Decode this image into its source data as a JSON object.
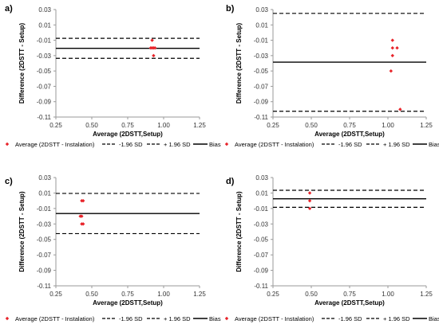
{
  "chart_data": [
    {
      "type": "scatter",
      "panel_label": "a)",
      "xlabel": "Average (2DSTT,Setup)",
      "ylabel": "Difference (2DSTT - Setup)",
      "xlim": [
        0.25,
        1.25
      ],
      "ylim": [
        -0.11,
        0.03
      ],
      "x_ticks": [
        "0.25",
        "0.50",
        "0.75",
        "1.00",
        "1.25"
      ],
      "y_ticks": [
        "0.03",
        "0.01",
        "-0.01",
        "-0.03",
        "-0.05",
        "-0.07",
        "-0.09",
        "-0.11"
      ],
      "grid": false,
      "points": [
        {
          "x": 0.92,
          "y": -0.01
        },
        {
          "x": 0.91,
          "y": -0.02
        },
        {
          "x": 0.92,
          "y": -0.02
        },
        {
          "x": 0.93,
          "y": -0.02
        },
        {
          "x": 0.94,
          "y": -0.02
        },
        {
          "x": 0.93,
          "y": -0.03
        }
      ],
      "bias": -0.0205,
      "lower_sd": -0.0335,
      "upper_sd": -0.0075,
      "legend": {
        "position": "bottom",
        "items": [
          "Average (2DSTT - Instalation)",
          "-1.96 SD",
          "+ 1.96 SD",
          "Bias"
        ]
      }
    },
    {
      "type": "scatter",
      "panel_label": "b)",
      "xlabel": "Average (2DSTT,Setup)",
      "ylabel": "Difference (2DSTT - Setup)",
      "xlim": [
        0.25,
        1.25
      ],
      "ylim": [
        -0.11,
        0.03
      ],
      "x_ticks": [
        "0.25",
        "0.50",
        "0.75",
        "1.00",
        "1.25"
      ],
      "y_ticks": [
        "0.03",
        "0.01",
        "-0.01",
        "-0.03",
        "-0.05",
        "-0.07",
        "-0.09",
        "-0.11"
      ],
      "grid": false,
      "points": [
        {
          "x": 1.03,
          "y": -0.01
        },
        {
          "x": 1.03,
          "y": -0.02
        },
        {
          "x": 1.06,
          "y": -0.02
        },
        {
          "x": 1.03,
          "y": -0.03
        },
        {
          "x": 1.02,
          "y": -0.05
        },
        {
          "x": 1.08,
          "y": -0.1
        }
      ],
      "bias": -0.0385,
      "lower_sd": -0.1025,
      "upper_sd": 0.025,
      "legend": {
        "position": "bottom",
        "items": [
          "Average (2DSTT - Instalation)",
          "-1.96 SD",
          "+ 1.96 SD",
          "Bias"
        ]
      }
    },
    {
      "type": "scatter",
      "panel_label": "c)",
      "xlabel": "Average (2DSTT,Setup)",
      "ylabel": "Difference (2DSTT - Setup)",
      "xlim": [
        0.25,
        1.25
      ],
      "ylim": [
        -0.11,
        0.03
      ],
      "x_ticks": [
        "0.25",
        "0.50",
        "0.75",
        "1.00",
        "1.25"
      ],
      "y_ticks": [
        "0.03",
        "0.01",
        "-0.01",
        "-0.03",
        "-0.05",
        "-0.07",
        "-0.09",
        "-0.11"
      ],
      "grid": false,
      "points": [
        {
          "x": 0.43,
          "y": 0.0
        },
        {
          "x": 0.44,
          "y": 0.0
        },
        {
          "x": 0.42,
          "y": -0.02
        },
        {
          "x": 0.43,
          "y": -0.02
        },
        {
          "x": 0.43,
          "y": -0.03
        },
        {
          "x": 0.44,
          "y": -0.03
        }
      ],
      "bias": -0.0165,
      "lower_sd": -0.0425,
      "upper_sd": 0.0095,
      "legend": {
        "position": "bottom",
        "items": [
          "Average (2DSTT - Instalation)",
          "-1.96 SD",
          "+ 1.96 SD",
          "Bias"
        ]
      }
    },
    {
      "type": "scatter",
      "panel_label": "d)",
      "xlabel": "Average (2DSTT,Setup)",
      "ylabel": "Difference (2DSTT - Setup)",
      "xlim": [
        0.25,
        1.25
      ],
      "ylim": [
        -0.11,
        0.03
      ],
      "x_ticks": [
        "0.25",
        "0.50",
        "0.75",
        "1.00",
        "1.25"
      ],
      "y_ticks": [
        "0.03",
        "0.01",
        "-0.01",
        "-0.03",
        "-0.05",
        "-0.07",
        "-0.09",
        "-0.11"
      ],
      "grid": false,
      "points": [
        {
          "x": 0.49,
          "y": 0.01
        },
        {
          "x": 0.49,
          "y": 0.0
        },
        {
          "x": 0.49,
          "y": -0.01
        }
      ],
      "bias": 0.0025,
      "lower_sd": -0.0085,
      "upper_sd": 0.0135,
      "legend": {
        "position": "bottom",
        "items": [
          "Average (2DSTT - Instalation)",
          "-1.96 SD",
          "+ 1.96 SD",
          "Bias"
        ]
      }
    }
  ],
  "colors": {
    "points": "#e8242a",
    "lines": "#000000",
    "axis": "#9a9a9a",
    "tick_text": "#333333"
  }
}
